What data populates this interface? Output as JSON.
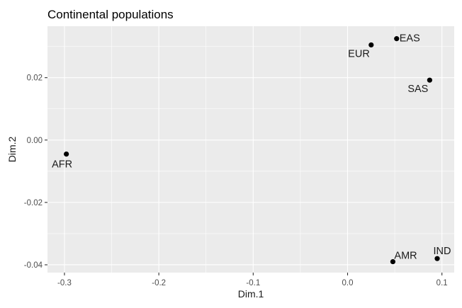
{
  "chart_data": {
    "type": "scatter",
    "title": "Continental populations",
    "xlabel": "Dim.1",
    "ylabel": "Dim.2",
    "xlim": [
      -0.318,
      0.113
    ],
    "ylim": [
      -0.0425,
      0.0365
    ],
    "grid": true,
    "x_ticks": [
      -0.3,
      -0.2,
      -0.1,
      0.0,
      0.1
    ],
    "x_tick_labels": [
      "-0.3",
      "-0.2",
      "-0.1",
      "0.0",
      "0.1"
    ],
    "x_minor": [
      -0.25,
      -0.15,
      -0.05,
      0.05
    ],
    "y_ticks": [
      0.02,
      0.0,
      -0.02,
      -0.04
    ],
    "y_tick_labels": [
      "0.02",
      "0.00",
      "-0.02",
      "-0.04"
    ],
    "y_minor": [
      0.03,
      0.01,
      -0.01,
      -0.03
    ],
    "points": [
      {
        "label": "EAS",
        "x": 0.052,
        "y": 0.0325,
        "label_position": "right"
      },
      {
        "label": "EUR",
        "x": 0.025,
        "y": 0.0305,
        "label_position": "below-left"
      },
      {
        "label": "SAS",
        "x": 0.087,
        "y": 0.0192,
        "label_position": "below-left"
      },
      {
        "label": "AFR",
        "x": -0.298,
        "y": -0.0045,
        "label_position": "below"
      },
      {
        "label": "AMR",
        "x": 0.048,
        "y": -0.039,
        "label_position": "above-right"
      },
      {
        "label": "IND",
        "x": 0.095,
        "y": -0.038,
        "label_position": "above"
      }
    ]
  }
}
